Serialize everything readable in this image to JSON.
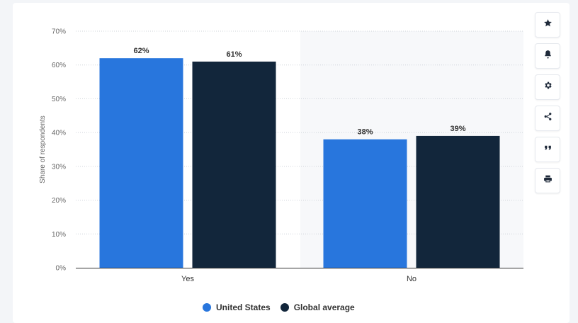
{
  "chart_data": {
    "type": "bar",
    "categories": [
      "Yes",
      "No"
    ],
    "series": [
      {
        "name": "United States",
        "color": "#2876dd",
        "values": [
          62,
          38
        ]
      },
      {
        "name": "Global average",
        "color": "#12263b",
        "values": [
          61,
          39
        ]
      }
    ],
    "ylabel": "Share of respondents",
    "ylim": [
      0,
      70
    ],
    "yticks": [
      0,
      10,
      20,
      30,
      40,
      50,
      60,
      70
    ],
    "ytick_labels": [
      "0%",
      "10%",
      "20%",
      "30%",
      "40%",
      "50%",
      "60%",
      "70%"
    ],
    "data_labels": [
      [
        "62%",
        "38%"
      ],
      [
        "61%",
        "39%"
      ]
    ],
    "grid": true,
    "legend_position": "bottom"
  },
  "toolbar": {
    "buttons": [
      "star-icon",
      "bell-icon",
      "gear-icon",
      "share-icon",
      "quote-icon",
      "print-icon"
    ]
  }
}
